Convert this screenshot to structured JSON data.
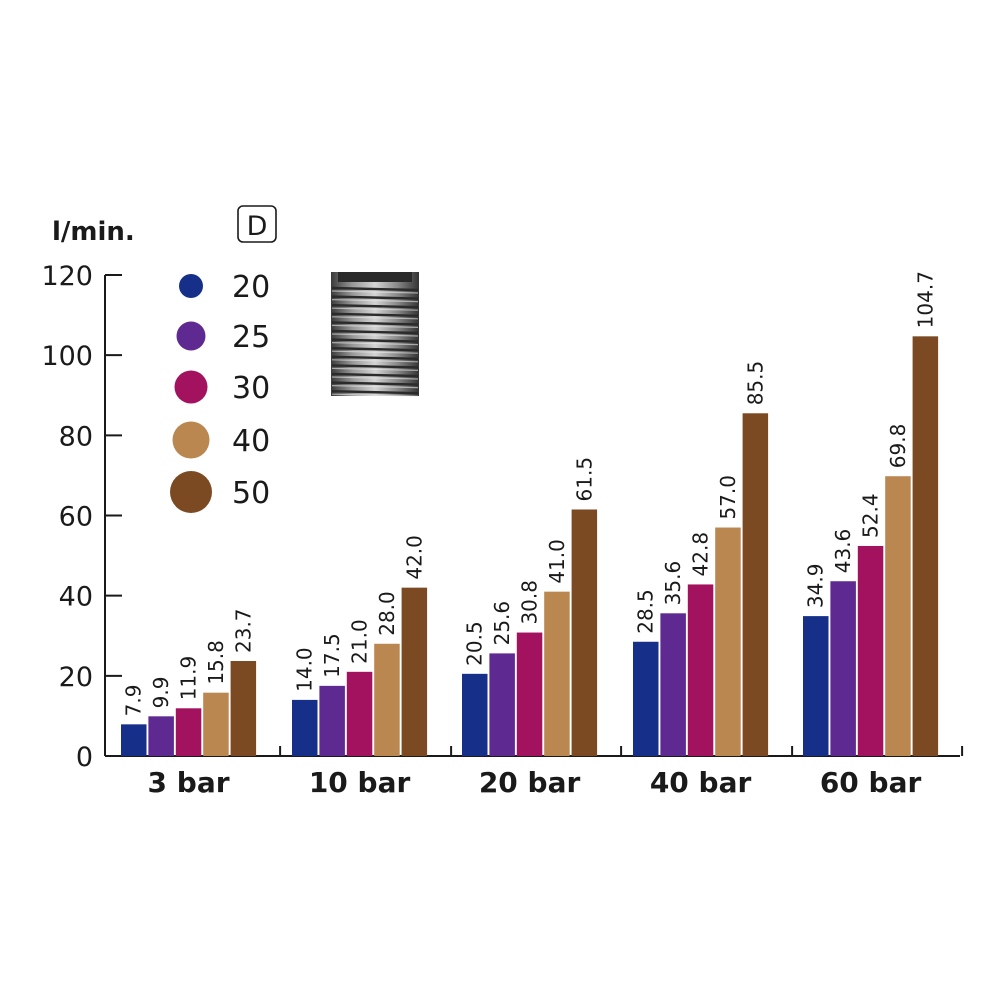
{
  "chart_data": {
    "type": "bar",
    "ylabel": "l/min.",
    "ylim": [
      0,
      120
    ],
    "yticks": [
      "0",
      "20",
      "40",
      "60",
      "80",
      "100",
      "120"
    ],
    "grid": false,
    "legend_title": "D",
    "legend_position": "top-left",
    "categories": [
      "3 bar",
      "10 bar",
      "20 bar",
      "40 bar",
      "60 bar"
    ],
    "series": [
      {
        "name": "20",
        "color": "#16308a",
        "values": [
          7.9,
          14.0,
          20.5,
          28.5,
          34.9
        ],
        "labels": [
          "7.9",
          "14.0",
          "20.5",
          "28.5",
          "34.9"
        ]
      },
      {
        "name": "25",
        "color": "#5e2991",
        "values": [
          9.9,
          17.5,
          25.6,
          35.6,
          43.6
        ],
        "labels": [
          "9.9",
          "17.5",
          "25.6",
          "35.6",
          "43.6"
        ]
      },
      {
        "name": "30",
        "color": "#a3125e",
        "values": [
          11.9,
          21.0,
          30.8,
          42.8,
          52.4
        ],
        "labels": [
          "11.9",
          "21.0",
          "30.8",
          "42.8",
          "52.4"
        ]
      },
      {
        "name": "40",
        "color": "#bb8750",
        "values": [
          15.8,
          28.0,
          41.0,
          57.0,
          69.8
        ],
        "labels": [
          "15.8",
          "28.0",
          "41.0",
          "57.0",
          "69.8"
        ]
      },
      {
        "name": "50",
        "color": "#7b4a22",
        "values": [
          23.7,
          42.0,
          61.5,
          85.5,
          104.7
        ],
        "labels": [
          "23.7",
          "42.0",
          "61.5",
          "85.5",
          "104.7"
        ]
      }
    ],
    "image": "threaded-nozzle-photo"
  }
}
